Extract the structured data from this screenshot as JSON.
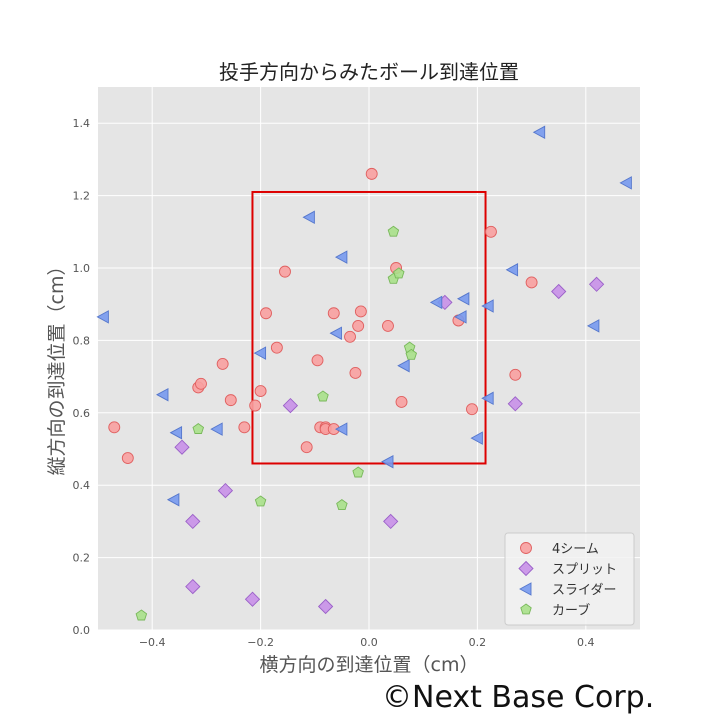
{
  "chart_data": {
    "type": "scatter",
    "title": "投手方向からみたボール到達位置",
    "xlabel": "横方向の到達位置（cm）",
    "ylabel": "縦方向の到達位置（cm）",
    "xlim": [
      -0.5,
      0.5
    ],
    "ylim": [
      0.0,
      1.5
    ],
    "xticks": [
      -0.4,
      -0.2,
      0.0,
      0.2,
      0.4
    ],
    "xtick_labels": [
      "−0.4",
      "−0.2",
      "0.0",
      "0.2",
      "0.4"
    ],
    "yticks": [
      0.0,
      0.2,
      0.4,
      0.6,
      0.8,
      1.0,
      1.2,
      1.4
    ],
    "ytick_labels": [
      "0.0",
      "0.2",
      "0.4",
      "0.6",
      "0.8",
      "1.0",
      "1.2",
      "1.4"
    ],
    "grid": true,
    "legend_position": "bottom-right",
    "strike_zone": {
      "x": [
        -0.215,
        0.215
      ],
      "y": [
        0.46,
        1.21
      ],
      "color": "#dd0000"
    },
    "series": [
      {
        "name": "4シーム",
        "marker": "circle",
        "color": "#f8a0a0",
        "edge": "#e06060",
        "points": [
          [
            -0.47,
            0.56
          ],
          [
            -0.445,
            0.475
          ],
          [
            -0.315,
            0.67
          ],
          [
            -0.31,
            0.68
          ],
          [
            -0.27,
            0.735
          ],
          [
            -0.255,
            0.635
          ],
          [
            -0.23,
            0.56
          ],
          [
            -0.21,
            0.62
          ],
          [
            -0.2,
            0.66
          ],
          [
            -0.19,
            0.875
          ],
          [
            -0.17,
            0.78
          ],
          [
            -0.155,
            0.99
          ],
          [
            -0.115,
            0.505
          ],
          [
            -0.095,
            0.745
          ],
          [
            -0.09,
            0.56
          ],
          [
            -0.08,
            0.56
          ],
          [
            -0.08,
            0.555
          ],
          [
            -0.065,
            0.875
          ],
          [
            -0.065,
            0.555
          ],
          [
            -0.035,
            0.81
          ],
          [
            -0.025,
            0.71
          ],
          [
            -0.02,
            0.84
          ],
          [
            -0.015,
            0.88
          ],
          [
            0.005,
            1.26
          ],
          [
            0.035,
            0.84
          ],
          [
            0.05,
            1.0
          ],
          [
            0.06,
            0.63
          ],
          [
            0.165,
            0.855
          ],
          [
            0.19,
            0.61
          ],
          [
            0.225,
            1.1
          ],
          [
            0.27,
            0.705
          ],
          [
            0.3,
            0.96
          ]
        ]
      },
      {
        "name": "スプリット",
        "marker": "diamond",
        "color": "#c890e8",
        "edge": "#9a60c8",
        "points": [
          [
            -0.345,
            0.505
          ],
          [
            -0.325,
            0.3
          ],
          [
            -0.325,
            0.12
          ],
          [
            -0.265,
            0.385
          ],
          [
            -0.215,
            0.085
          ],
          [
            -0.145,
            0.62
          ],
          [
            -0.08,
            0.065
          ],
          [
            0.04,
            0.3
          ],
          [
            0.14,
            0.905
          ],
          [
            0.27,
            0.625
          ],
          [
            0.35,
            0.935
          ],
          [
            0.42,
            0.955
          ]
        ]
      },
      {
        "name": "スライダー",
        "marker": "triangle-left",
        "color": "#7799ee",
        "edge": "#5577cc",
        "points": [
          [
            -0.49,
            0.865
          ],
          [
            -0.38,
            0.65
          ],
          [
            -0.355,
            0.545
          ],
          [
            -0.36,
            0.36
          ],
          [
            -0.28,
            0.555
          ],
          [
            -0.2,
            0.765
          ],
          [
            -0.11,
            1.14
          ],
          [
            -0.06,
            0.82
          ],
          [
            -0.05,
            1.03
          ],
          [
            -0.05,
            0.555
          ],
          [
            0.035,
            0.465
          ],
          [
            0.065,
            0.73
          ],
          [
            0.125,
            0.905
          ],
          [
            0.17,
            0.865
          ],
          [
            0.175,
            0.915
          ],
          [
            0.2,
            0.53
          ],
          [
            0.22,
            0.64
          ],
          [
            0.22,
            0.895
          ],
          [
            0.265,
            0.995
          ],
          [
            0.315,
            1.375
          ],
          [
            0.415,
            0.84
          ],
          [
            0.475,
            1.235
          ]
        ]
      },
      {
        "name": "カーブ",
        "marker": "pentagon",
        "color": "#a8e08a",
        "edge": "#78b85a",
        "points": [
          [
            -0.42,
            0.04
          ],
          [
            -0.315,
            0.555
          ],
          [
            -0.2,
            0.355
          ],
          [
            -0.085,
            0.645
          ],
          [
            -0.05,
            0.345
          ],
          [
            -0.02,
            0.435
          ],
          [
            0.045,
            1.1
          ],
          [
            0.045,
            0.97
          ],
          [
            0.055,
            0.985
          ],
          [
            0.075,
            0.78
          ],
          [
            0.078,
            0.76
          ]
        ]
      }
    ]
  },
  "watermark": "©Next Base Corp."
}
